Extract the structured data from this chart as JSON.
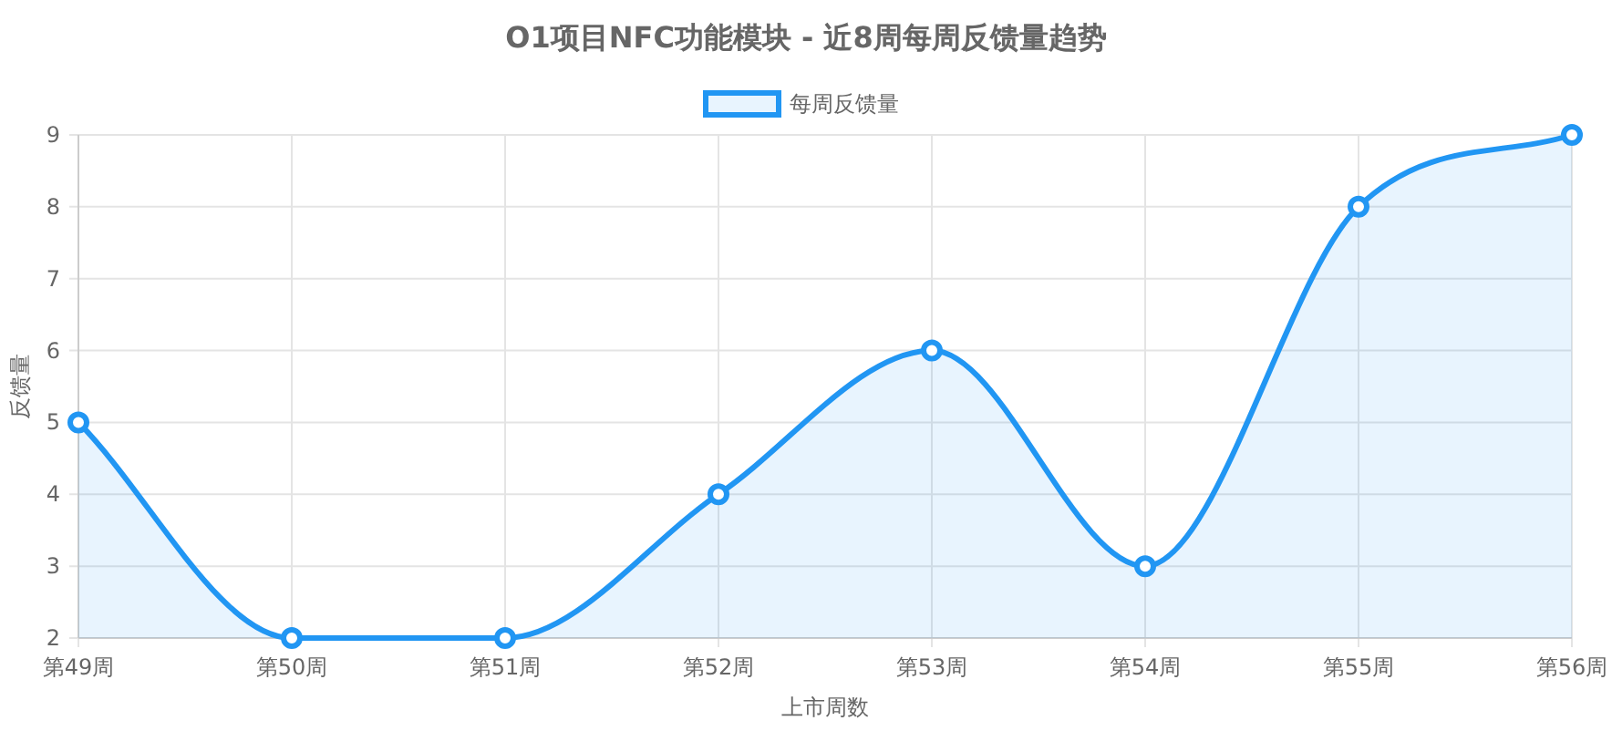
{
  "chart_data": {
    "type": "area",
    "title": "O1项目NFC功能模块 - 近8周每周反馈量趋势",
    "xlabel": "上市周数",
    "ylabel": "反馈量",
    "categories": [
      "第49周",
      "第50周",
      "第51周",
      "第52周",
      "第53周",
      "第54周",
      "第55周",
      "第56周"
    ],
    "series": [
      {
        "name": "每周反馈量",
        "color": "#2196f3",
        "values": [
          5,
          2,
          2,
          4,
          6,
          3,
          8,
          9
        ]
      }
    ],
    "ylim": [
      2,
      9
    ],
    "yticks": [
      2,
      3,
      4,
      5,
      6,
      7,
      8,
      9
    ],
    "grid": true,
    "legend": "top",
    "marker": "circle"
  }
}
